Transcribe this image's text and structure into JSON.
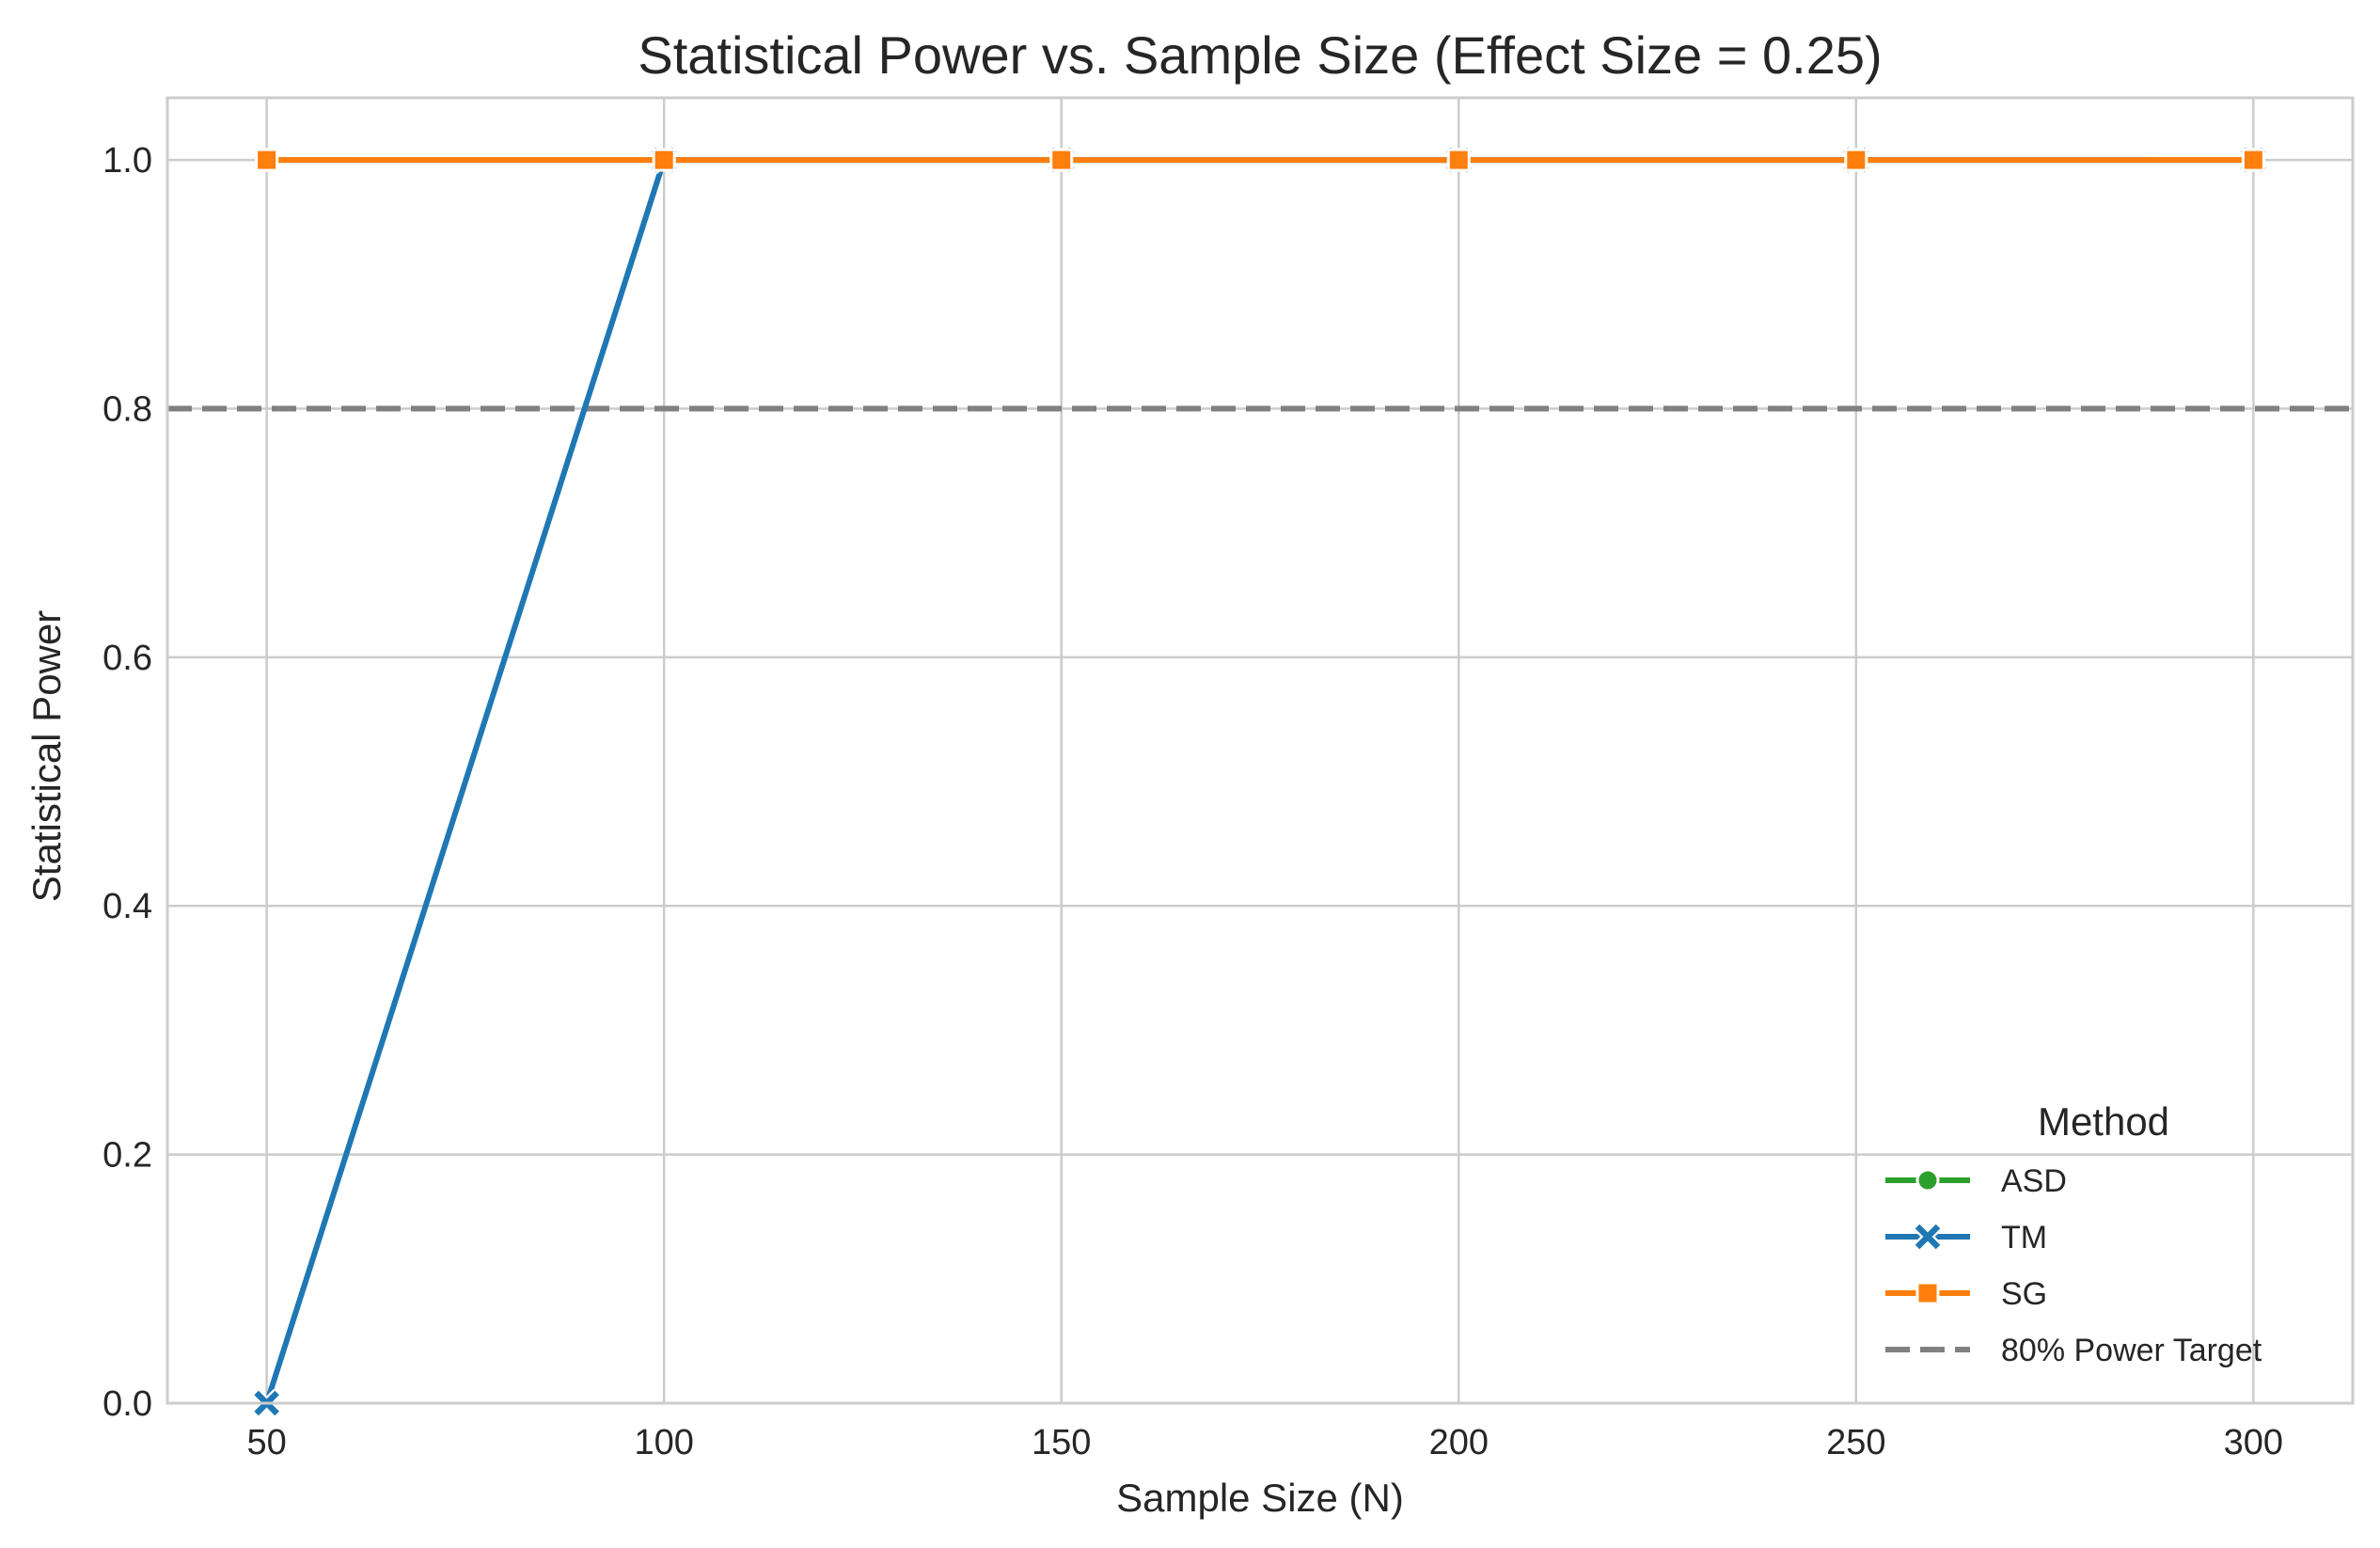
{
  "chart_data": {
    "type": "line",
    "title": "Statistical Power vs. Sample Size (Effect Size = 0.25)",
    "xlabel": "Sample Size (N)",
    "ylabel": "Statistical Power",
    "xlim": [
      37.5,
      312.5
    ],
    "ylim": [
      0.0,
      1.05
    ],
    "x": [
      50,
      100,
      150,
      200,
      250,
      300
    ],
    "xticks": [
      50,
      100,
      150,
      200,
      250,
      300
    ],
    "yticks": [
      0.0,
      0.2,
      0.4,
      0.6,
      0.8,
      1.0
    ],
    "xtick_labels": [
      "50",
      "100",
      "150",
      "200",
      "250",
      "300"
    ],
    "ytick_labels": [
      "0.0",
      "0.2",
      "0.4",
      "0.6",
      "0.8",
      "1.0"
    ],
    "grid": true,
    "legend": {
      "title": "Method",
      "placement": "lower-right"
    },
    "series": [
      {
        "name": "ASD",
        "values": [
          1.0,
          1.0,
          1.0,
          1.0,
          1.0,
          1.0
        ],
        "color": "#2ca02c",
        "marker": "circle"
      },
      {
        "name": "TM",
        "values": [
          0.0,
          1.0,
          1.0,
          1.0,
          1.0,
          1.0
        ],
        "color": "#1f77b4",
        "marker": "x"
      },
      {
        "name": "SG",
        "values": [
          1.0,
          1.0,
          1.0,
          1.0,
          1.0,
          1.0
        ],
        "color": "#ff7f0e",
        "marker": "square"
      }
    ],
    "reference_line": {
      "name": "80% Power Target",
      "value": 0.8,
      "color": "#808080",
      "style": "dashed"
    }
  }
}
